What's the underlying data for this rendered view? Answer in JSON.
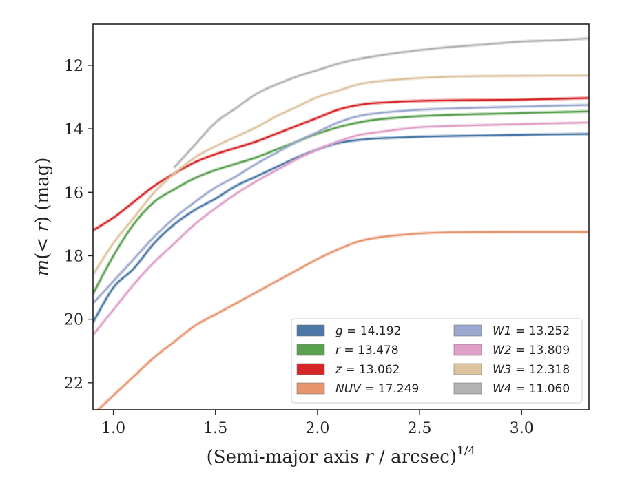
{
  "chart_data": {
    "type": "line",
    "xlabel": "(Semi-major axis r / arcsec)",
    "xlabel_parts": {
      "prefix": "(Semi-major axis ",
      "var": "r",
      "suffix": " / arcsec)",
      "sup": "1/4"
    },
    "ylabel": "m(< r) (mag)",
    "ylabel_parts": {
      "var": "m",
      "mid": "(< ",
      "var2": "r",
      "suffix": ") (mag)"
    },
    "xlim": [
      0.9,
      3.33
    ],
    "ylim": [
      22.85,
      10.7
    ],
    "y_inverted": true,
    "xticks": [
      1.0,
      1.5,
      2.0,
      2.5,
      3.0
    ],
    "xtick_labels": [
      "1.0",
      "1.5",
      "2.0",
      "2.5",
      "3.0"
    ],
    "yticks": [
      12,
      14,
      16,
      18,
      20,
      22
    ],
    "ytick_labels": [
      "12",
      "14",
      "16",
      "18",
      "20",
      "22"
    ],
    "grid": false,
    "legend_placement": "lower-right",
    "series": [
      {
        "name": "g",
        "legend_label": "g = 14.192",
        "color": "#4C78A8",
        "x": [
          0.9,
          1.0,
          1.1,
          1.2,
          1.3,
          1.4,
          1.5,
          1.6,
          1.7,
          1.8,
          1.9,
          2.0,
          2.1,
          2.2,
          2.3,
          2.5,
          2.7,
          3.0,
          3.33
        ],
        "y": [
          20.1,
          19.0,
          18.4,
          17.6,
          17.0,
          16.55,
          16.2,
          15.8,
          15.5,
          15.2,
          14.9,
          14.65,
          14.45,
          14.35,
          14.3,
          14.25,
          14.22,
          14.19,
          14.16
        ]
      },
      {
        "name": "r",
        "legend_label": "r = 13.478",
        "color": "#59A14F",
        "x": [
          0.9,
          1.0,
          1.1,
          1.2,
          1.3,
          1.4,
          1.5,
          1.6,
          1.7,
          1.8,
          1.9,
          2.0,
          2.1,
          2.2,
          2.3,
          2.5,
          2.7,
          3.0,
          3.33
        ],
        "y": [
          19.2,
          18.0,
          17.0,
          16.3,
          15.9,
          15.55,
          15.3,
          15.1,
          14.9,
          14.65,
          14.4,
          14.15,
          13.95,
          13.8,
          13.7,
          13.6,
          13.55,
          13.5,
          13.45
        ]
      },
      {
        "name": "z",
        "legend_label": "z = 13.062",
        "color": "#D62728",
        "x": [
          0.9,
          1.0,
          1.1,
          1.2,
          1.3,
          1.4,
          1.5,
          1.6,
          1.7,
          1.8,
          1.9,
          2.0,
          2.1,
          2.2,
          2.3,
          2.5,
          2.7,
          3.0,
          3.33
        ],
        "y": [
          17.2,
          16.8,
          16.3,
          15.8,
          15.4,
          15.05,
          14.8,
          14.6,
          14.4,
          14.15,
          13.9,
          13.65,
          13.4,
          13.25,
          13.18,
          13.12,
          13.1,
          13.08,
          13.03
        ]
      },
      {
        "name": "NUV",
        "legend_label": "NUV = 17.249",
        "color": "#E8956F",
        "x": [
          0.9,
          1.0,
          1.1,
          1.2,
          1.3,
          1.4,
          1.5,
          1.6,
          1.7,
          1.8,
          1.9,
          2.0,
          2.1,
          2.2,
          2.3,
          2.4,
          2.5,
          2.65,
          3.0,
          3.33
        ],
        "y": [
          23.0,
          22.4,
          21.8,
          21.2,
          20.7,
          20.2,
          19.85,
          19.5,
          19.15,
          18.8,
          18.45,
          18.1,
          17.8,
          17.55,
          17.42,
          17.35,
          17.3,
          17.26,
          17.25,
          17.25
        ]
      },
      {
        "name": "W1",
        "legend_label": "W1 = 13.252",
        "color": "#9BA8CF",
        "x": [
          0.9,
          1.0,
          1.1,
          1.2,
          1.3,
          1.4,
          1.5,
          1.6,
          1.7,
          1.8,
          1.9,
          2.0,
          2.1,
          2.2,
          2.3,
          2.5,
          2.7,
          3.0,
          3.33
        ],
        "y": [
          19.5,
          18.8,
          18.1,
          17.4,
          16.8,
          16.3,
          15.85,
          15.5,
          15.1,
          14.75,
          14.4,
          14.1,
          13.8,
          13.6,
          13.5,
          13.4,
          13.35,
          13.3,
          13.25
        ]
      },
      {
        "name": "W2",
        "legend_label": "W2 = 13.809",
        "color": "#DF9FC8",
        "x": [
          0.9,
          1.0,
          1.1,
          1.2,
          1.3,
          1.4,
          1.5,
          1.6,
          1.7,
          1.8,
          1.9,
          2.0,
          2.1,
          2.2,
          2.3,
          2.5,
          2.7,
          3.0,
          3.33
        ],
        "y": [
          20.5,
          19.7,
          18.9,
          18.2,
          17.6,
          17.0,
          16.5,
          16.05,
          15.65,
          15.3,
          14.95,
          14.65,
          14.4,
          14.2,
          14.1,
          13.95,
          13.9,
          13.85,
          13.8
        ]
      },
      {
        "name": "W3",
        "legend_label": "W3 = 12.318",
        "color": "#DEC39F",
        "x": [
          0.9,
          1.0,
          1.1,
          1.2,
          1.3,
          1.4,
          1.5,
          1.6,
          1.7,
          1.8,
          1.9,
          2.0,
          2.1,
          2.2,
          2.3,
          2.5,
          2.7,
          3.0,
          3.33
        ],
        "y": [
          18.6,
          17.6,
          16.8,
          16.0,
          15.4,
          14.9,
          14.55,
          14.25,
          13.95,
          13.6,
          13.3,
          13.0,
          12.8,
          12.6,
          12.5,
          12.4,
          12.35,
          12.33,
          12.32
        ]
      },
      {
        "name": "W4",
        "legend_label": "W4 = 11.060",
        "color": "#B3B3B3",
        "x": [
          1.3,
          1.4,
          1.5,
          1.6,
          1.7,
          1.8,
          1.9,
          2.0,
          2.1,
          2.2,
          2.4,
          2.6,
          2.8,
          3.0,
          3.2,
          3.33
        ],
        "y": [
          15.2,
          14.5,
          13.8,
          13.35,
          12.9,
          12.6,
          12.35,
          12.15,
          11.95,
          11.8,
          11.6,
          11.45,
          11.35,
          11.25,
          11.2,
          11.15
        ]
      }
    ]
  }
}
